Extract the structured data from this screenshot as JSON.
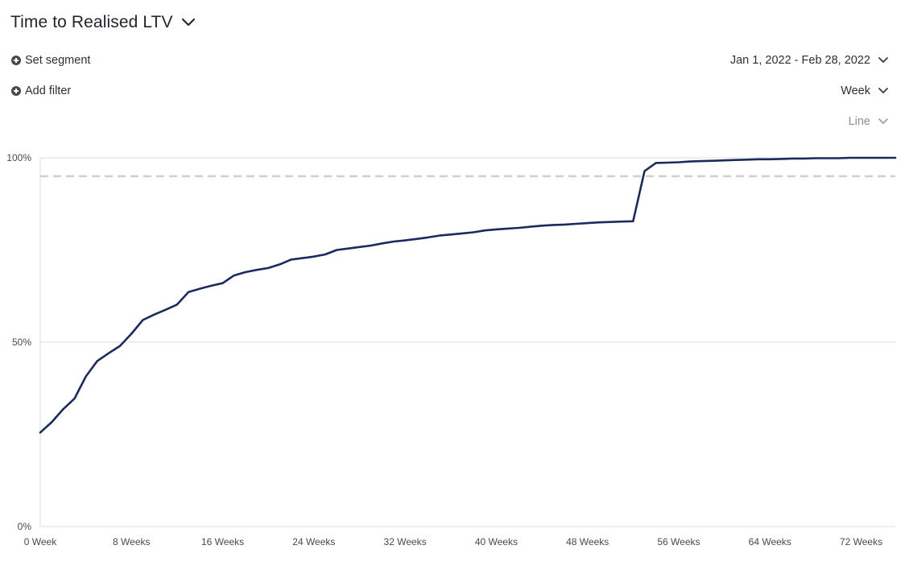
{
  "report": {
    "title": "Time to Realised LTV"
  },
  "controls": {
    "set_segment": "Set segment",
    "add_filter": "Add filter",
    "date_range": "Jan 1, 2022 - Feb 28, 2022",
    "interval": "Week",
    "chart_type": "Line"
  },
  "colors": {
    "line": "#1c2a5e",
    "threshold": "#d0d0d0",
    "grid": "#dcdcdc"
  },
  "icons": {
    "title_dropdown": "chevron-down-icon",
    "segment": "plus-circle-icon",
    "filter": "plus-circle-icon"
  },
  "chart_data": {
    "type": "line",
    "title": "",
    "xlabel": "",
    "ylabel": "",
    "xlim": [
      0,
      75
    ],
    "ylim": [
      0,
      100
    ],
    "y_ticks": [
      {
        "value": 0,
        "label": "0%"
      },
      {
        "value": 50,
        "label": "50%"
      },
      {
        "value": 100,
        "label": "100%"
      }
    ],
    "x_ticks": [
      {
        "value": 0,
        "label": "0 Week"
      },
      {
        "value": 8,
        "label": "8 Weeks"
      },
      {
        "value": 16,
        "label": "16 Weeks"
      },
      {
        "value": 24,
        "label": "24 Weeks"
      },
      {
        "value": 32,
        "label": "32 Weeks"
      },
      {
        "value": 40,
        "label": "40 Weeks"
      },
      {
        "value": 48,
        "label": "48 Weeks"
      },
      {
        "value": 56,
        "label": "56 Weeks"
      },
      {
        "value": 64,
        "label": "64 Weeks"
      },
      {
        "value": 72,
        "label": "72 Weeks"
      }
    ],
    "grid": true,
    "threshold": 95,
    "series": [
      {
        "x": [
          0,
          1,
          2,
          3,
          4,
          5,
          6,
          7,
          8,
          9,
          10,
          11,
          12,
          13,
          14,
          15,
          16,
          17,
          18,
          19,
          20,
          21,
          22,
          23,
          24,
          25,
          26,
          27,
          28,
          29,
          30,
          31,
          32,
          33,
          34,
          35,
          36,
          37,
          38,
          39,
          40,
          41,
          42,
          43,
          44,
          45,
          46,
          47,
          48,
          49,
          50,
          51,
          52,
          53,
          54,
          55,
          56,
          57,
          58,
          59,
          60,
          61,
          62,
          63,
          64,
          65,
          66,
          67,
          68,
          69,
          70,
          71,
          72,
          73,
          74,
          75
        ],
        "values": [
          25.5,
          28.3,
          31.8,
          34.7,
          40.7,
          44.9,
          47.0,
          49.0,
          52.3,
          56.0,
          57.5,
          58.8,
          60.2,
          63.6,
          64.5,
          65.3,
          66.0,
          68.1,
          69.0,
          69.6,
          70.1,
          71.1,
          72.4,
          72.8,
          73.2,
          73.8,
          75.0,
          75.4,
          75.8,
          76.2,
          76.8,
          77.3,
          77.6,
          78.0,
          78.4,
          78.9,
          79.2,
          79.5,
          79.8,
          80.3,
          80.6,
          80.8,
          81.0,
          81.3,
          81.6,
          81.8,
          81.9,
          82.1,
          82.3,
          82.5,
          82.6,
          82.7,
          82.8,
          96.4,
          98.6,
          98.7,
          98.8,
          99.0,
          99.1,
          99.2,
          99.3,
          99.4,
          99.5,
          99.6,
          99.6,
          99.7,
          99.8,
          99.8,
          99.9,
          99.9,
          99.9,
          100.0,
          100.0,
          100.0,
          100.0,
          100.0
        ]
      }
    ]
  }
}
